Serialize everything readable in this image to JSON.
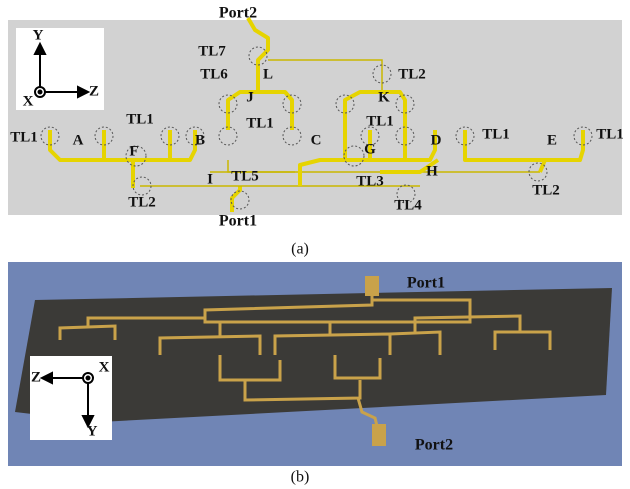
{
  "panel_a": {
    "labels": [
      "Port2",
      "TL7",
      "TL6",
      "L",
      "TL2",
      "J",
      "K",
      "TL1",
      "A",
      "TL1",
      "F",
      "B",
      "TL1",
      "C",
      "TL1",
      "G",
      "D",
      "TL1",
      "E",
      "TL1",
      "I",
      "TL5",
      "TL3",
      "H",
      "TL2",
      "TL4",
      "TL2",
      "Port1"
    ],
    "axes": {
      "y": "Y",
      "x": "X",
      "z": "Z"
    },
    "caption": "(a)"
  },
  "panel_b": {
    "labels": [
      "Port1",
      "Port2"
    ],
    "axes": {
      "z": "Z",
      "x": "X",
      "y": "Y"
    },
    "caption": "(b)"
  }
}
